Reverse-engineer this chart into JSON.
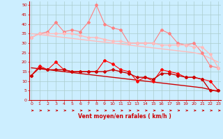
{
  "x": [
    0,
    1,
    2,
    3,
    4,
    5,
    6,
    7,
    8,
    9,
    10,
    11,
    12,
    13,
    14,
    15,
    16,
    17,
    18,
    19,
    20,
    21,
    22,
    23
  ],
  "series": [
    {
      "name": "rafales_max",
      "color": "#ff8080",
      "lw": 0.8,
      "marker": "D",
      "ms": 2.0,
      "values": [
        33,
        35,
        36,
        41,
        36,
        37,
        36,
        41,
        50,
        40,
        38,
        37,
        30,
        30,
        30,
        30,
        37,
        35,
        30,
        29,
        30,
        25,
        18,
        17
      ]
    },
    {
      "name": "rafales_mean",
      "color": "#ffbbbb",
      "lw": 1.0,
      "marker": "D",
      "ms": 2.0,
      "values": [
        33,
        35,
        35,
        35,
        35,
        35,
        34,
        33,
        33,
        32,
        31,
        31,
        30,
        30,
        30,
        30,
        29,
        29,
        29,
        29,
        28,
        28,
        24,
        17
      ]
    },
    {
      "name": "vent_max",
      "color": "#ff0000",
      "lw": 0.8,
      "marker": "D",
      "ms": 2.0,
      "values": [
        13,
        18,
        16,
        20,
        16,
        15,
        15,
        15,
        15,
        21,
        19,
        16,
        15,
        10,
        12,
        10,
        16,
        15,
        14,
        12,
        12,
        11,
        10,
        5
      ]
    },
    {
      "name": "vent_mean",
      "color": "#cc0000",
      "lw": 1.0,
      "marker": "D",
      "ms": 2.0,
      "values": [
        13,
        17,
        16,
        16,
        16,
        15,
        15,
        15,
        15,
        15,
        16,
        15,
        14,
        12,
        12,
        11,
        14,
        14,
        13,
        12,
        12,
        11,
        5,
        5
      ]
    },
    {
      "name": "trend_rafales",
      "color": "#ffbbbb",
      "lw": 1.0,
      "marker": null,
      "ms": 0,
      "values": [
        35,
        34.5,
        34,
        33.5,
        33,
        32.5,
        32,
        31.5,
        31,
        30.5,
        30,
        29.5,
        29,
        28.5,
        28,
        27.5,
        27,
        26.5,
        26,
        25.5,
        25,
        24,
        22,
        20
      ]
    },
    {
      "name": "trend_vent",
      "color": "#cc0000",
      "lw": 1.0,
      "marker": null,
      "ms": 0,
      "values": [
        17,
        16.5,
        16,
        15.5,
        15,
        14.5,
        14,
        13.5,
        13,
        12.5,
        12,
        11.5,
        11,
        10.5,
        10,
        9.5,
        9,
        8.5,
        8,
        7.5,
        7,
        6.5,
        5.5,
        4.5
      ]
    }
  ],
  "xlabel": "Vent moyen/en rafales ( km/h )",
  "ylim": [
    0,
    52
  ],
  "yticks": [
    0,
    5,
    10,
    15,
    20,
    25,
    30,
    35,
    40,
    45,
    50
  ],
  "xlim": [
    -0.3,
    23.3
  ],
  "bg_color": "#cceeff",
  "grid_color": "#aacccc",
  "xlabel_color": "#cc0000",
  "tick_color": "#cc0000",
  "spine_color": "#cc0000"
}
